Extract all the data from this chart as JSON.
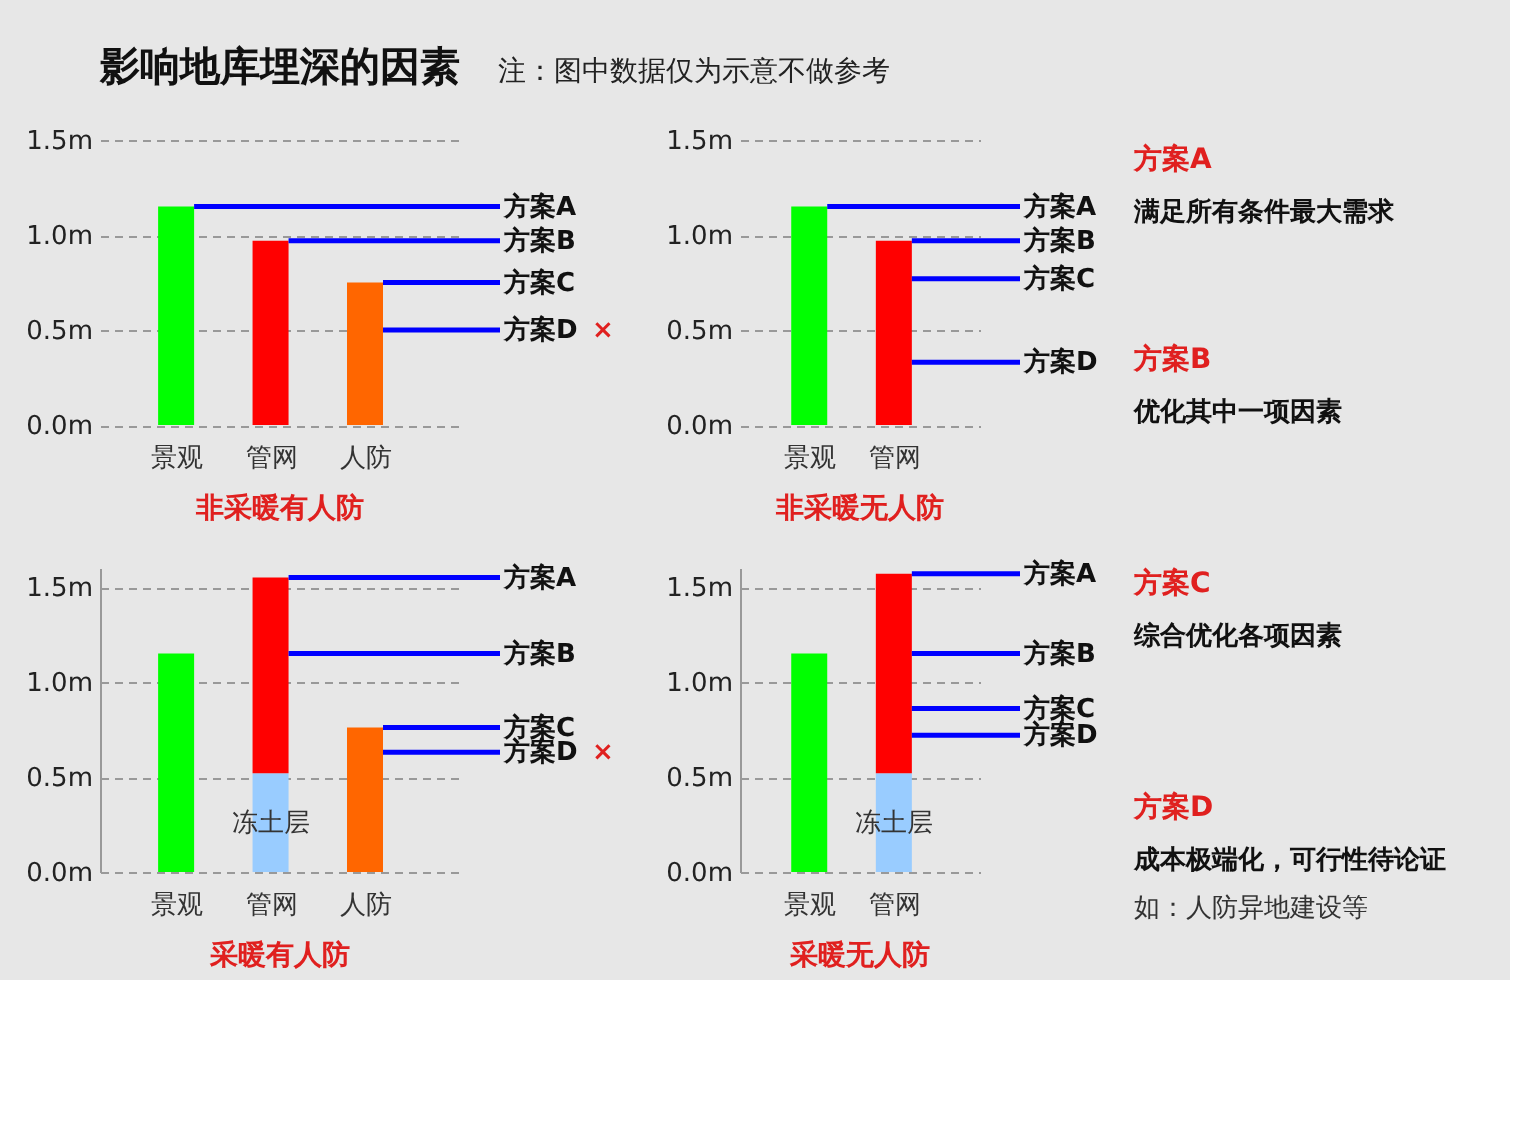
{
  "chart_data": [
    {
      "type": "other",
      "title": "影响地库埋深的因素",
      "subtitle": "注：图中数据仅为示意不做参考"
    },
    {
      "type": "bar",
      "title": "非采暖有人防",
      "categories": [
        "景观",
        "管网",
        "人防"
      ],
      "series": [
        {
          "values": [
            1.15,
            0.97,
            0.75
          ],
          "colors": [
            "#00ff00",
            "#ff0000",
            "#ff6600"
          ]
        }
      ],
      "ylim": [
        0,
        1.5
      ],
      "yticks": [
        {
          "value": 0,
          "label": "0.0m"
        },
        {
          "value": 0.5,
          "label": "0.5m"
        },
        {
          "value": 1,
          "label": "1.0m"
        },
        {
          "value": 1.5,
          "label": "1.5m"
        }
      ],
      "grid": "y",
      "ref_lines": [
        {
          "axis": "y",
          "value": 1.15,
          "label": "方案A",
          "color": "#0000ff"
        },
        {
          "axis": "y",
          "value": 0.97,
          "label": "方案B",
          "color": "#0000ff"
        },
        {
          "axis": "y",
          "value": 0.75,
          "label": "方案C",
          "color": "#0000ff"
        },
        {
          "axis": "y",
          "value": 0.5,
          "label": "方案D",
          "color": "#0000ff"
        }
      ],
      "annotations": [
        "×"
      ]
    },
    {
      "type": "bar",
      "title": "非采暖无人防",
      "categories": [
        "景观",
        "管网"
      ],
      "series": [
        {
          "values": [
            1.15,
            0.97
          ],
          "colors": [
            "#00ff00",
            "#ff0000"
          ]
        }
      ],
      "ylim": [
        0,
        1.5
      ],
      "yticks": [
        {
          "value": 0,
          "label": "0.0m"
        },
        {
          "value": 0.5,
          "label": "0.5m"
        },
        {
          "value": 1,
          "label": "1.0m"
        },
        {
          "value": 1.5,
          "label": "1.5m"
        }
      ],
      "grid": "y",
      "ref_lines": [
        {
          "axis": "y",
          "value": 1.15,
          "label": "方案A",
          "color": "#0000ff"
        },
        {
          "axis": "y",
          "value": 0.97,
          "label": "方案B",
          "color": "#0000ff"
        },
        {
          "axis": "y",
          "value": 0.77,
          "label": "方案C",
          "color": "#0000ff"
        },
        {
          "axis": "y",
          "value": 0.33,
          "label": "方案D",
          "color": "#0000ff"
        }
      ]
    },
    {
      "type": "bar",
      "title": "采暖有人防",
      "categories": [
        "景观",
        "管网",
        "人防"
      ],
      "stacked": true,
      "series": [
        {
          "name": "冻土层",
          "color": "#99ccff",
          "values": [
            null,
            0.52,
            null
          ]
        },
        {
          "values": [
            1.15,
            1.03,
            0.76
          ],
          "colors": [
            "#00ff00",
            "#ff0000",
            "#ff6600"
          ]
        }
      ],
      "ylim": [
        0,
        1.6
      ],
      "yticks": [
        {
          "value": 0,
          "label": "0.0m"
        },
        {
          "value": 0.5,
          "label": "0.5m"
        },
        {
          "value": 1,
          "label": "1.0m"
        },
        {
          "value": 1.5,
          "label": "1.5m"
        }
      ],
      "grid": "y",
      "ref_lines": [
        {
          "axis": "y",
          "value": 1.55,
          "label": "方案A",
          "color": "#0000ff"
        },
        {
          "axis": "y",
          "value": 1.15,
          "label": "方案B",
          "color": "#0000ff"
        },
        {
          "axis": "y",
          "value": 0.76,
          "label": "方案C",
          "color": "#0000ff"
        },
        {
          "axis": "y",
          "value": 0.63,
          "label": "方案D",
          "color": "#0000ff"
        }
      ],
      "annotations": [
        "×"
      ]
    },
    {
      "type": "bar",
      "title": "采暖无人防",
      "categories": [
        "景观",
        "管网"
      ],
      "stacked": true,
      "series": [
        {
          "name": "冻土层",
          "color": "#99ccff",
          "values": [
            null,
            0.52
          ]
        },
        {
          "values": [
            1.15,
            1.05
          ],
          "colors": [
            "#00ff00",
            "#ff0000"
          ]
        }
      ],
      "ylim": [
        0,
        1.6
      ],
      "yticks": [
        {
          "value": 0,
          "label": "0.0m"
        },
        {
          "value": 0.5,
          "label": "0.5m"
        },
        {
          "value": 1,
          "label": "1.0m"
        },
        {
          "value": 1.5,
          "label": "1.5m"
        }
      ],
      "grid": "y",
      "ref_lines": [
        {
          "axis": "y",
          "value": 1.57,
          "label": "方案A",
          "color": "#0000ff"
        },
        {
          "axis": "y",
          "value": 1.15,
          "label": "方案B",
          "color": "#0000ff"
        },
        {
          "axis": "y",
          "value": 0.86,
          "label": "方案C",
          "color": "#0000ff"
        },
        {
          "axis": "y",
          "value": 0.72,
          "label": "方案D",
          "color": "#0000ff"
        }
      ]
    },
    {
      "type": "other",
      "title": "方案A",
      "annotations": [
        "满足所有条件最大需求"
      ]
    },
    {
      "type": "other",
      "title": "方案B",
      "annotations": [
        "优化其中一项因素"
      ]
    },
    {
      "type": "other",
      "title": "方案C",
      "annotations": [
        "综合优化各项因素"
      ]
    },
    {
      "type": "other",
      "title": "方案D",
      "annotations": [
        "成本极端化，可行性待论证",
        "如：人防异地建设等"
      ]
    }
  ]
}
